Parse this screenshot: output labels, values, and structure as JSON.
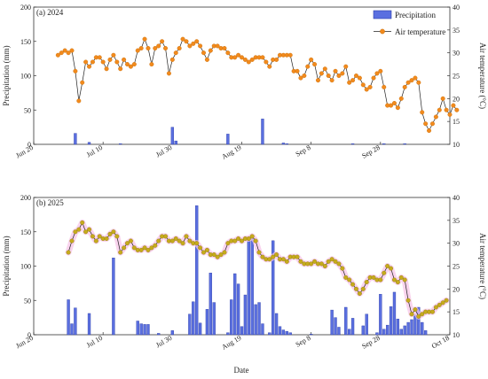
{
  "colors": {
    "bar": "#5a6fe0",
    "bar_edge": "#2e3fa8",
    "line_2024": "#f28a1c",
    "line_2025": "#c6ab1c",
    "line_stroke": "#222222",
    "glow_2025": "#f7c6e8"
  },
  "xlabel": "Date",
  "chart_data": [
    {
      "type": "bar+line",
      "panel": "(a) 2024",
      "x_unit": "day offset from Jun 20",
      "xlim": [
        0,
        120
      ],
      "x_ticks": [
        {
          "x": 0,
          "label": "Jun 20"
        },
        {
          "x": 20,
          "label": "Jul 10"
        },
        {
          "x": 40,
          "label": "Jul 30"
        },
        {
          "x": 60,
          "label": "Aug 19"
        },
        {
          "x": 80,
          "label": "Sep 8"
        },
        {
          "x": 100,
          "label": "Sep 28"
        }
      ],
      "ylabel_left": "Precipitation (mm)",
      "ylim_left": [
        0,
        200
      ],
      "yticks_left": [
        0,
        50,
        100,
        150,
        200
      ],
      "ylabel_right": "Air temperature (°C)",
      "ylim_right": [
        10,
        40
      ],
      "yticks_right": [
        10,
        15,
        20,
        25,
        30,
        35,
        40
      ],
      "legend": {
        "position": "top-right",
        "bar_label": "Precipitation",
        "line_label": "Air temperature"
      },
      "precip": [
        [
          12,
          16
        ],
        [
          16,
          3
        ],
        [
          25,
          1
        ],
        [
          40,
          25
        ],
        [
          41,
          5
        ],
        [
          56,
          15
        ],
        [
          66,
          37
        ],
        [
          72,
          2
        ],
        [
          73,
          1
        ],
        [
          92,
          1
        ],
        [
          101,
          1
        ],
        [
          107,
          1
        ]
      ],
      "temp": [
        [
          7,
          29.5
        ],
        [
          8,
          30
        ],
        [
          9,
          30.5
        ],
        [
          10,
          30
        ],
        [
          11,
          30.5
        ],
        [
          12,
          26
        ],
        [
          13,
          19.5
        ],
        [
          14,
          23.5
        ],
        [
          15,
          28
        ],
        [
          16,
          27
        ],
        [
          17,
          28
        ],
        [
          18,
          29
        ],
        [
          19,
          29
        ],
        [
          20,
          28
        ],
        [
          21,
          26.5
        ],
        [
          22,
          28.5
        ],
        [
          23,
          29.5
        ],
        [
          24,
          28
        ],
        [
          25,
          26.5
        ],
        [
          26,
          28.5
        ],
        [
          27,
          27.5
        ],
        [
          28,
          27
        ],
        [
          29,
          27.5
        ],
        [
          30,
          30.5
        ],
        [
          31,
          31
        ],
        [
          32,
          33
        ],
        [
          33,
          31
        ],
        [
          34,
          27.5
        ],
        [
          35,
          31
        ],
        [
          36,
          31.5
        ],
        [
          37,
          32.5
        ],
        [
          38,
          31
        ],
        [
          39,
          25.5
        ],
        [
          40,
          28.5
        ],
        [
          41,
          30
        ],
        [
          42,
          31
        ],
        [
          43,
          33
        ],
        [
          44,
          32.5
        ],
        [
          45,
          31.5
        ],
        [
          46,
          32
        ],
        [
          47,
          32.5
        ],
        [
          48,
          31.5
        ],
        [
          49,
          30
        ],
        [
          50,
          28.5
        ],
        [
          51,
          30.5
        ],
        [
          52,
          31.5
        ],
        [
          53,
          31.5
        ],
        [
          54,
          31
        ],
        [
          55,
          31
        ],
        [
          56,
          30
        ],
        [
          57,
          29
        ],
        [
          58,
          29
        ],
        [
          59,
          29.5
        ],
        [
          60,
          29
        ],
        [
          61,
          28.5
        ],
        [
          62,
          28
        ],
        [
          63,
          28.5
        ],
        [
          64,
          29
        ],
        [
          65,
          29
        ],
        [
          66,
          29
        ],
        [
          67,
          28
        ],
        [
          68,
          27
        ],
        [
          69,
          28.5
        ],
        [
          70,
          28.5
        ],
        [
          71,
          29.5
        ],
        [
          72,
          29.5
        ],
        [
          73,
          29.5
        ],
        [
          74,
          29.5
        ],
        [
          75,
          26
        ],
        [
          76,
          26
        ],
        [
          77,
          24.5
        ],
        [
          78,
          25
        ],
        [
          79,
          27
        ],
        [
          80,
          28.5
        ],
        [
          81,
          27.5
        ],
        [
          82,
          24
        ],
        [
          83,
          25.5
        ],
        [
          84,
          26.5
        ],
        [
          85,
          25
        ],
        [
          86,
          24
        ],
        [
          87,
          26
        ],
        [
          88,
          25
        ],
        [
          89,
          25.5
        ],
        [
          90,
          27
        ],
        [
          91,
          23.5
        ],
        [
          92,
          24
        ],
        [
          93,
          25
        ],
        [
          94,
          24.5
        ],
        [
          95,
          23
        ],
        [
          96,
          22
        ],
        [
          97,
          22.5
        ],
        [
          98,
          24.5
        ],
        [
          99,
          25.5
        ],
        [
          100,
          26
        ],
        [
          101,
          22.5
        ],
        [
          102,
          18.5
        ],
        [
          103,
          18.5
        ],
        [
          104,
          19
        ],
        [
          105,
          18
        ],
        [
          106,
          20
        ],
        [
          107,
          22.5
        ],
        [
          108,
          23.5
        ],
        [
          109,
          24
        ],
        [
          110,
          24.5
        ],
        [
          111,
          23.5
        ],
        [
          112,
          17
        ],
        [
          113,
          14.5
        ],
        [
          114,
          13
        ],
        [
          115,
          14.5
        ],
        [
          116,
          16
        ],
        [
          117,
          17.5
        ],
        [
          118,
          20
        ],
        [
          119,
          17.5
        ],
        [
          120,
          16.5
        ],
        [
          121,
          18.5
        ],
        [
          122,
          17.5
        ]
      ]
    },
    {
      "type": "bar+line",
      "panel": "(b) 2025",
      "x_unit": "day offset from Jun 20",
      "xlim": [
        0,
        120
      ],
      "x_ticks": [
        {
          "x": 0,
          "label": "Jun 20"
        },
        {
          "x": 20,
          "label": "Jul 10"
        },
        {
          "x": 40,
          "label": "Jul 30"
        },
        {
          "x": 60,
          "label": "Aug 19"
        },
        {
          "x": 80,
          "label": "Sep 8"
        },
        {
          "x": 100,
          "label": "Sep 28"
        },
        {
          "x": 120,
          "label": "Oct 18"
        }
      ],
      "ylabel_left": "Precipitation (mm)",
      "ylim_left": [
        0,
        200
      ],
      "yticks_left": [
        0,
        50,
        100,
        150,
        200
      ],
      "ylabel_right": "Air temperature (°C)",
      "ylim_right": [
        10,
        40
      ],
      "yticks_right": [
        10,
        15,
        20,
        25,
        30,
        35,
        40
      ],
      "precip": [
        [
          10,
          51
        ],
        [
          11,
          16
        ],
        [
          12,
          39
        ],
        [
          16,
          31
        ],
        [
          23,
          112
        ],
        [
          30,
          20
        ],
        [
          31,
          16
        ],
        [
          32,
          15
        ],
        [
          33,
          15
        ],
        [
          36,
          2
        ],
        [
          40,
          6
        ],
        [
          45,
          30
        ],
        [
          46,
          48
        ],
        [
          47,
          188
        ],
        [
          48,
          17
        ],
        [
          50,
          37
        ],
        [
          51,
          90
        ],
        [
          52,
          47
        ],
        [
          56,
          3
        ],
        [
          57,
          51
        ],
        [
          58,
          89
        ],
        [
          59,
          74
        ],
        [
          60,
          12
        ],
        [
          61,
          58
        ],
        [
          62,
          142
        ],
        [
          63,
          140
        ],
        [
          64,
          44
        ],
        [
          65,
          47
        ],
        [
          66,
          16
        ],
        [
          68,
          3
        ],
        [
          69,
          137
        ],
        [
          70,
          31
        ],
        [
          71,
          12
        ],
        [
          72,
          7
        ],
        [
          73,
          5
        ],
        [
          74,
          3
        ],
        [
          80,
          1
        ],
        [
          86,
          36
        ],
        [
          87,
          25
        ],
        [
          88,
          11
        ],
        [
          90,
          40
        ],
        [
          91,
          8
        ],
        [
          92,
          24
        ],
        [
          95,
          13
        ],
        [
          96,
          30
        ],
        [
          99,
          3
        ],
        [
          100,
          59
        ],
        [
          101,
          8
        ],
        [
          102,
          14
        ],
        [
          103,
          41
        ],
        [
          104,
          62
        ],
        [
          105,
          23
        ],
        [
          106,
          8
        ],
        [
          107,
          13
        ],
        [
          108,
          18
        ],
        [
          109,
          22
        ],
        [
          110,
          29
        ],
        [
          111,
          40
        ],
        [
          112,
          18
        ],
        [
          113,
          6
        ]
      ],
      "temp": [
        [
          10,
          28
        ],
        [
          11,
          30.5
        ],
        [
          12,
          32.5
        ],
        [
          13,
          33
        ],
        [
          14,
          34.5
        ],
        [
          15,
          32.5
        ],
        [
          16,
          33
        ],
        [
          17,
          31.5
        ],
        [
          18,
          30.5
        ],
        [
          19,
          31.5
        ],
        [
          20,
          31
        ],
        [
          21,
          31
        ],
        [
          22,
          32
        ],
        [
          23,
          32.5
        ],
        [
          24,
          31.5
        ],
        [
          25,
          28
        ],
        [
          26,
          29
        ],
        [
          27,
          30
        ],
        [
          28,
          30.5
        ],
        [
          29,
          29
        ],
        [
          30,
          28.5
        ],
        [
          31,
          28.5
        ],
        [
          32,
          29
        ],
        [
          33,
          28.5
        ],
        [
          34,
          29
        ],
        [
          35,
          29.5
        ],
        [
          36,
          30.5
        ],
        [
          37,
          31.5
        ],
        [
          38,
          31.5
        ],
        [
          39,
          30.5
        ],
        [
          40,
          30.5
        ],
        [
          41,
          31
        ],
        [
          42,
          30.5
        ],
        [
          43,
          30
        ],
        [
          44,
          31.5
        ],
        [
          45,
          30.5
        ],
        [
          46,
          30
        ],
        [
          47,
          30
        ],
        [
          48,
          29
        ],
        [
          49,
          28
        ],
        [
          50,
          28.5
        ],
        [
          51,
          27.5
        ],
        [
          52,
          27.5
        ],
        [
          53,
          27
        ],
        [
          54,
          27.5
        ],
        [
          55,
          28
        ],
        [
          56,
          30
        ],
        [
          57,
          30.5
        ],
        [
          58,
          30.5
        ],
        [
          59,
          31
        ],
        [
          60,
          30.5
        ],
        [
          61,
          31
        ],
        [
          62,
          31
        ],
        [
          63,
          31.5
        ],
        [
          64,
          30.5
        ],
        [
          65,
          28
        ],
        [
          66,
          27
        ],
        [
          67,
          26.5
        ],
        [
          68,
          26.5
        ],
        [
          69,
          27
        ],
        [
          70,
          27.5
        ],
        [
          71,
          26.5
        ],
        [
          72,
          26.5
        ],
        [
          73,
          26
        ],
        [
          74,
          27
        ],
        [
          75,
          27
        ],
        [
          76,
          27
        ],
        [
          77,
          26
        ],
        [
          78,
          25.5
        ],
        [
          79,
          25.5
        ],
        [
          80,
          25.5
        ],
        [
          81,
          26
        ],
        [
          82,
          25.5
        ],
        [
          83,
          25.5
        ],
        [
          84,
          25
        ],
        [
          85,
          26
        ],
        [
          86,
          26.5
        ],
        [
          87,
          26
        ],
        [
          88,
          25.5
        ],
        [
          89,
          24.5
        ],
        [
          90,
          22.5
        ],
        [
          91,
          22
        ],
        [
          92,
          21
        ],
        [
          93,
          20
        ],
        [
          94,
          19
        ],
        [
          95,
          20
        ],
        [
          96,
          21.5
        ],
        [
          97,
          22.5
        ],
        [
          98,
          22.5
        ],
        [
          99,
          22
        ],
        [
          100,
          22
        ],
        [
          101,
          23.5
        ],
        [
          102,
          25
        ],
        [
          103,
          24.5
        ],
        [
          104,
          22
        ],
        [
          105,
          21.5
        ],
        [
          106,
          22.5
        ],
        [
          107,
          22
        ],
        [
          108,
          17.5
        ],
        [
          109,
          14.5
        ],
        [
          110,
          15.5
        ],
        [
          111,
          14
        ],
        [
          112,
          14.5
        ],
        [
          113,
          15
        ],
        [
          114,
          15
        ],
        [
          115,
          15
        ],
        [
          116,
          16
        ],
        [
          117,
          16.5
        ],
        [
          118,
          17
        ],
        [
          119,
          17.5
        ]
      ]
    }
  ]
}
